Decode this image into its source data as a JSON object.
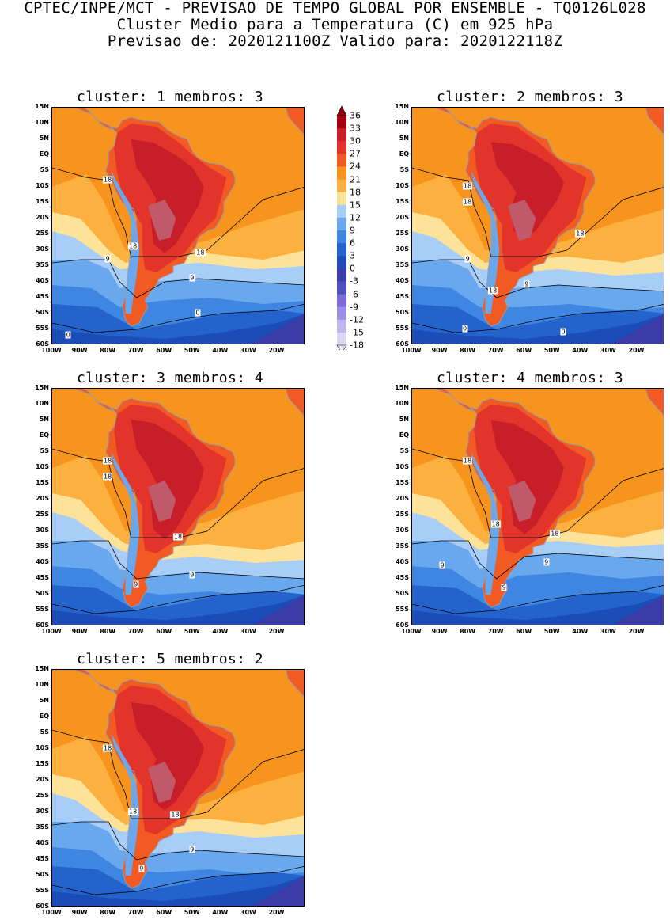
{
  "header": {
    "line1": "CPTEC/INPE/MCT - PREVISAO DE TEMPO GLOBAL POR ENSEMBLE - TQ0126L028",
    "line2": "Cluster Medio para a Temperatura (C) em 925 hPa",
    "line3": "Previsao de: 2020121100Z   Valido para: 2020122118Z"
  },
  "axes": {
    "lat_labels": [
      "15N",
      "10N",
      "5N",
      "EQ",
      "5S",
      "10S",
      "15S",
      "20S",
      "25S",
      "30S",
      "35S",
      "40S",
      "45S",
      "50S",
      "55S",
      "60S"
    ],
    "lon_labels": [
      "100W",
      "90W",
      "80W",
      "70W",
      "60W",
      "50W",
      "40W",
      "30W",
      "20W"
    ]
  },
  "colorbar": {
    "labels": [
      "36",
      "33",
      "30",
      "27",
      "24",
      "21",
      "18",
      "15",
      "12",
      "9",
      "6",
      "3",
      "0",
      "-3",
      "-6",
      "-9",
      "-12",
      "-15",
      "-18"
    ],
    "colors": [
      "#a50015",
      "#c81e2a",
      "#e3342c",
      "#f15a22",
      "#f7941d",
      "#fbb040",
      "#fde39a",
      "#a8cdf7",
      "#6aa8ee",
      "#3f86e2",
      "#2563cc",
      "#1b4cb7",
      "#3c3ca8",
      "#5050c0",
      "#7a6ed6",
      "#9f8fe3",
      "#c2b6ee",
      "#ddd6f6"
    ],
    "top_arrow_color": "#8b0010",
    "bottom_arrow_color": "#ebe6fa"
  },
  "panels": [
    {
      "title": "cluster: 1   membros: 3",
      "contour_labels": [
        {
          "text": "18",
          "lon": -80,
          "lat": -8
        },
        {
          "text": "18",
          "lon": -71,
          "lat": -29
        },
        {
          "text": "18",
          "lon": -47,
          "lat": -31
        },
        {
          "text": "9",
          "lon": -80,
          "lat": -33
        },
        {
          "text": "9",
          "lon": -50,
          "lat": -39
        },
        {
          "text": "0",
          "lon": -48,
          "lat": -50
        },
        {
          "text": "0",
          "lon": -94,
          "lat": -57
        }
      ]
    },
    {
      "title": "cluster: 2   membros: 3",
      "contour_labels": [
        {
          "text": "18",
          "lon": -80,
          "lat": -10
        },
        {
          "text": "18",
          "lon": -80,
          "lat": -15
        },
        {
          "text": "18",
          "lon": -40,
          "lat": -25
        },
        {
          "text": "9",
          "lon": -80,
          "lat": -33
        },
        {
          "text": "9",
          "lon": -59,
          "lat": -41
        },
        {
          "text": "18",
          "lon": -71,
          "lat": -43
        },
        {
          "text": "0",
          "lon": -81,
          "lat": -55
        },
        {
          "text": "0",
          "lon": -46,
          "lat": -56
        }
      ]
    },
    {
      "title": "cluster: 3   membros: 4",
      "contour_labels": [
        {
          "text": "18",
          "lon": -80,
          "lat": -8
        },
        {
          "text": "18",
          "lon": -80,
          "lat": -13
        },
        {
          "text": "18",
          "lon": -55,
          "lat": -32
        },
        {
          "text": "9",
          "lon": -70,
          "lat": -47
        },
        {
          "text": "9",
          "lon": -50,
          "lat": -44
        }
      ]
    },
    {
      "title": "cluster: 4   membros: 3",
      "contour_labels": [
        {
          "text": "18",
          "lon": -80,
          "lat": -8
        },
        {
          "text": "18",
          "lon": -70,
          "lat": -28
        },
        {
          "text": "18",
          "lon": -49,
          "lat": -31
        },
        {
          "text": "9",
          "lon": -89,
          "lat": -41
        },
        {
          "text": "9",
          "lon": -52,
          "lat": -40
        },
        {
          "text": "9",
          "lon": -67,
          "lat": -48
        }
      ]
    },
    {
      "title": "cluster: 5   membros: 2",
      "contour_labels": [
        {
          "text": "18",
          "lon": -80,
          "lat": -10
        },
        {
          "text": "18",
          "lon": -71,
          "lat": -30
        },
        {
          "text": "18",
          "lon": -56,
          "lat": -31
        },
        {
          "text": "9",
          "lon": -50,
          "lat": -42
        },
        {
          "text": "9",
          "lon": -68,
          "lat": -48
        }
      ]
    }
  ]
}
